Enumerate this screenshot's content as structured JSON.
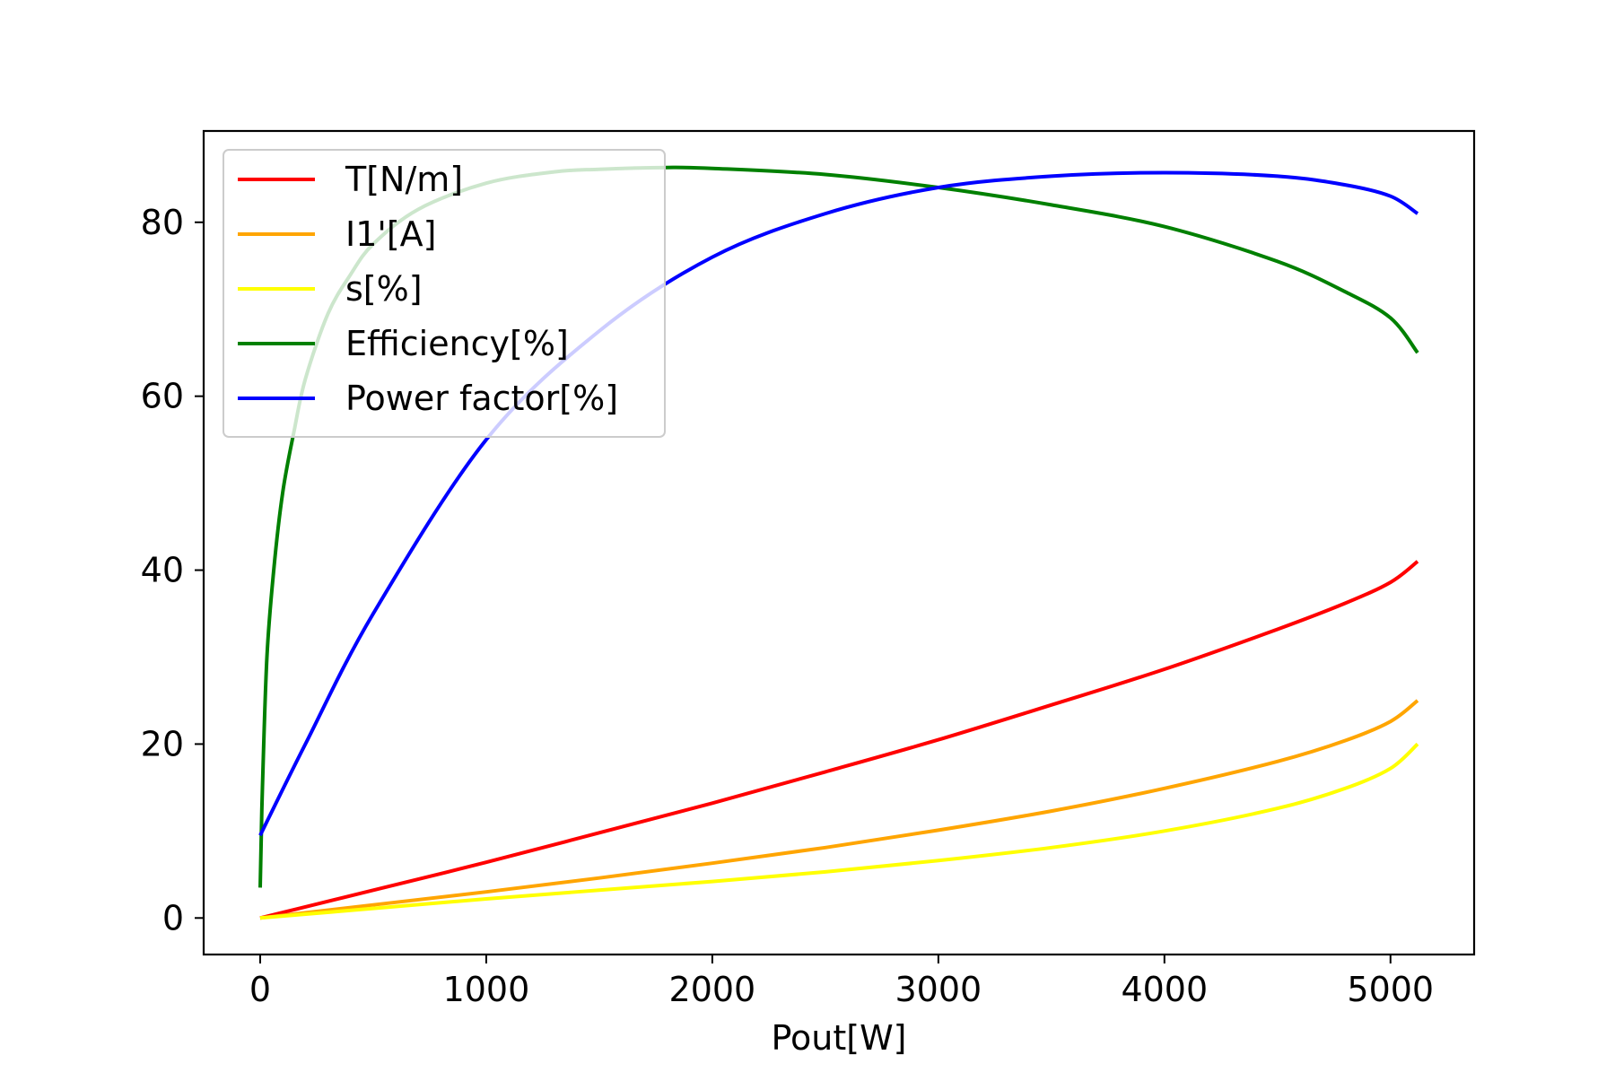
{
  "chart_data": {
    "type": "line",
    "title": "",
    "xlabel": "Pout[W]",
    "ylabel": "",
    "xlim": [
      -250,
      5370
    ],
    "ylim": [
      -4.2,
      90.5
    ],
    "xticks": [
      0,
      1000,
      2000,
      3000,
      4000,
      5000
    ],
    "yticks": [
      0,
      20,
      40,
      60,
      80
    ],
    "grid": false,
    "legend_position": "upper-left",
    "series": [
      {
        "name": "T[N/m]",
        "color": "#ff0000",
        "x": [
          0,
          250,
          500,
          1000,
          1500,
          2000,
          2500,
          3000,
          3500,
          4000,
          4500,
          4800,
          5000,
          5120
        ],
        "y": [
          0,
          1.6,
          3.2,
          6.4,
          9.8,
          13.2,
          16.8,
          20.5,
          24.5,
          28.6,
          33.2,
          36.2,
          38.6,
          41
        ]
      },
      {
        "name": "I1'[A]",
        "color": "#ffa500",
        "x": [
          0,
          500,
          1000,
          1500,
          2000,
          2500,
          3000,
          3500,
          4000,
          4500,
          4800,
          5000,
          5120
        ],
        "y": [
          0,
          1.5,
          3,
          4.6,
          6.3,
          8.1,
          10.1,
          12.3,
          14.9,
          18,
          20.4,
          22.6,
          25
        ]
      },
      {
        "name": "s[%]",
        "color": "#ffff00",
        "x": [
          0,
          500,
          1000,
          1500,
          2000,
          2500,
          3000,
          3500,
          4000,
          4500,
          4800,
          5000,
          5120
        ],
        "y": [
          0,
          1.1,
          2.2,
          3.2,
          4.2,
          5.3,
          6.6,
          8.1,
          10,
          12.6,
          14.9,
          17.2,
          20
        ]
      },
      {
        "name": "Efficiency[%]",
        "color": "#008000",
        "x": [
          0,
          10,
          30,
          60,
          100,
          150,
          200,
          300,
          400,
          500,
          700,
          1000,
          1300,
          1500,
          1800,
          2000,
          2500,
          3000,
          3500,
          4000,
          4500,
          4800,
          5000,
          5120
        ],
        "y": [
          3.5,
          15,
          30,
          40,
          49,
          56,
          62,
          69.5,
          74,
          77.5,
          81.5,
          84.5,
          85.8,
          86.1,
          86.3,
          86.2,
          85.5,
          84,
          82,
          79.5,
          75.5,
          72,
          69,
          65
        ]
      },
      {
        "name": "Power factor[%]",
        "color": "#0000ff",
        "x": [
          0,
          200,
          500,
          1000,
          1500,
          2000,
          2500,
          3000,
          3500,
          4000,
          4500,
          4800,
          5000,
          5120
        ],
        "y": [
          9.5,
          20,
          35,
          55,
          67.5,
          76,
          81,
          84,
          85.3,
          85.7,
          85.3,
          84.3,
          83,
          81
        ]
      }
    ]
  }
}
